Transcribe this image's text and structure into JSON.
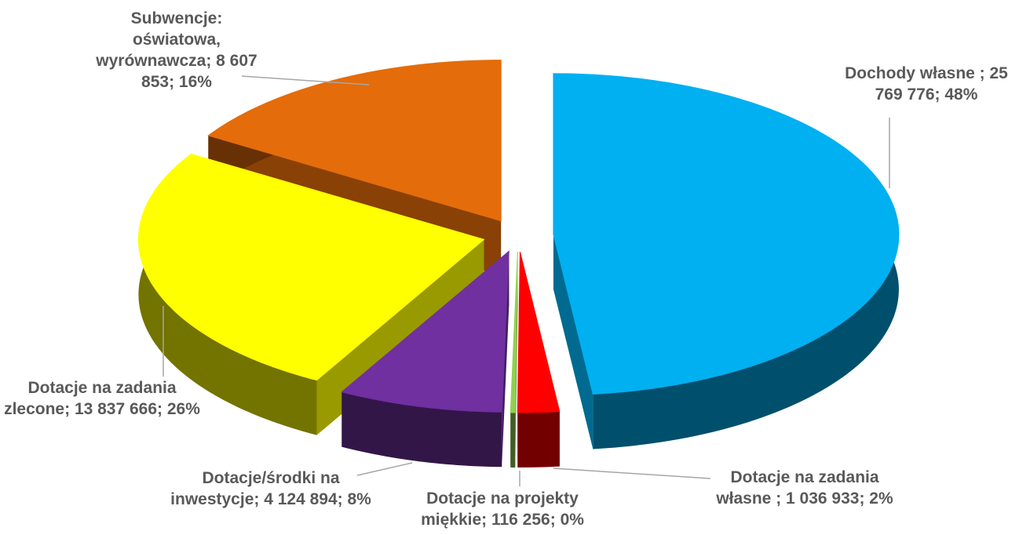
{
  "chart_data": {
    "type": "pie",
    "categories": [
      "Dochody własne ",
      "Dotacje na zadania własne ",
      "Dotacje na projekty miękkie",
      "Dotacje/środki na inwestycje",
      "Dotacje na zadania zlecone",
      "Subwencje: oświatowa, wyrównawcza"
    ],
    "values": [
      25769776,
      1036933,
      116256,
      4124894,
      13837666,
      8607853
    ],
    "value_labels": [
      "25 769 776",
      "1 036 933",
      "116 256",
      "4 124 894",
      "13 837 666",
      "8 607 853"
    ],
    "percent_labels": [
      "48%",
      "2%",
      "0%",
      "8%",
      "26%",
      "16%"
    ],
    "separator": "; ",
    "colors": [
      "#00b0f0",
      "#ff0000",
      "#92d050",
      "#7030a0",
      "#ffff00",
      "#e46c0a"
    ]
  }
}
